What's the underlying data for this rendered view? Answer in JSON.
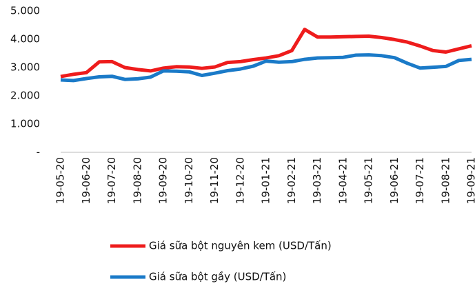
{
  "chart_data": {
    "type": "line",
    "categories": [
      "19-05-20",
      null,
      "19-06-20",
      null,
      "19-07-20",
      null,
      "19-08-20",
      null,
      "19-09-20",
      null,
      "19-10-20",
      null,
      "19-11-20",
      null,
      "19-12-20",
      null,
      "19-01-21",
      null,
      "19-02-21",
      null,
      "19-03-21",
      null,
      "19-04-21",
      null,
      "19-05-21",
      null,
      "19-06-21",
      null,
      "19-07-21",
      null,
      "19-08-21",
      null,
      "19-09-21"
    ],
    "series": [
      {
        "name": "Giá sữa bột nguyên kem (USD/Tấn)",
        "color": "#ee1c1c",
        "values": [
          2680,
          2760,
          2820,
          3200,
          3210,
          3000,
          2930,
          2880,
          2980,
          3030,
          3020,
          2970,
          3020,
          3180,
          3210,
          3280,
          3340,
          3420,
          3600,
          4350,
          4080,
          4080,
          4090,
          4100,
          4110,
          4060,
          3990,
          3900,
          3760,
          3600,
          3550,
          3660,
          3770
        ]
      },
      {
        "name": "Giá sữa bột gầy (USD/Tấn)",
        "color": "#1a7ac8",
        "values": [
          2560,
          2540,
          2610,
          2670,
          2690,
          2580,
          2600,
          2660,
          2880,
          2870,
          2850,
          2720,
          2800,
          2890,
          2950,
          3050,
          3230,
          3190,
          3210,
          3290,
          3340,
          3350,
          3360,
          3440,
          3450,
          3420,
          3350,
          3150,
          2980,
          3010,
          3040,
          3250,
          3290
        ]
      }
    ],
    "ylim": [
      0,
      5000
    ],
    "yticks": [
      {
        "value": 0,
        "label": "-"
      },
      {
        "value": 1000,
        "label": "1.000"
      },
      {
        "value": 2000,
        "label": "2.000"
      },
      {
        "value": 3000,
        "label": "3.000"
      },
      {
        "value": 4000,
        "label": "4.000"
      },
      {
        "value": 5000,
        "label": "5.000"
      }
    ],
    "grid": false
  }
}
